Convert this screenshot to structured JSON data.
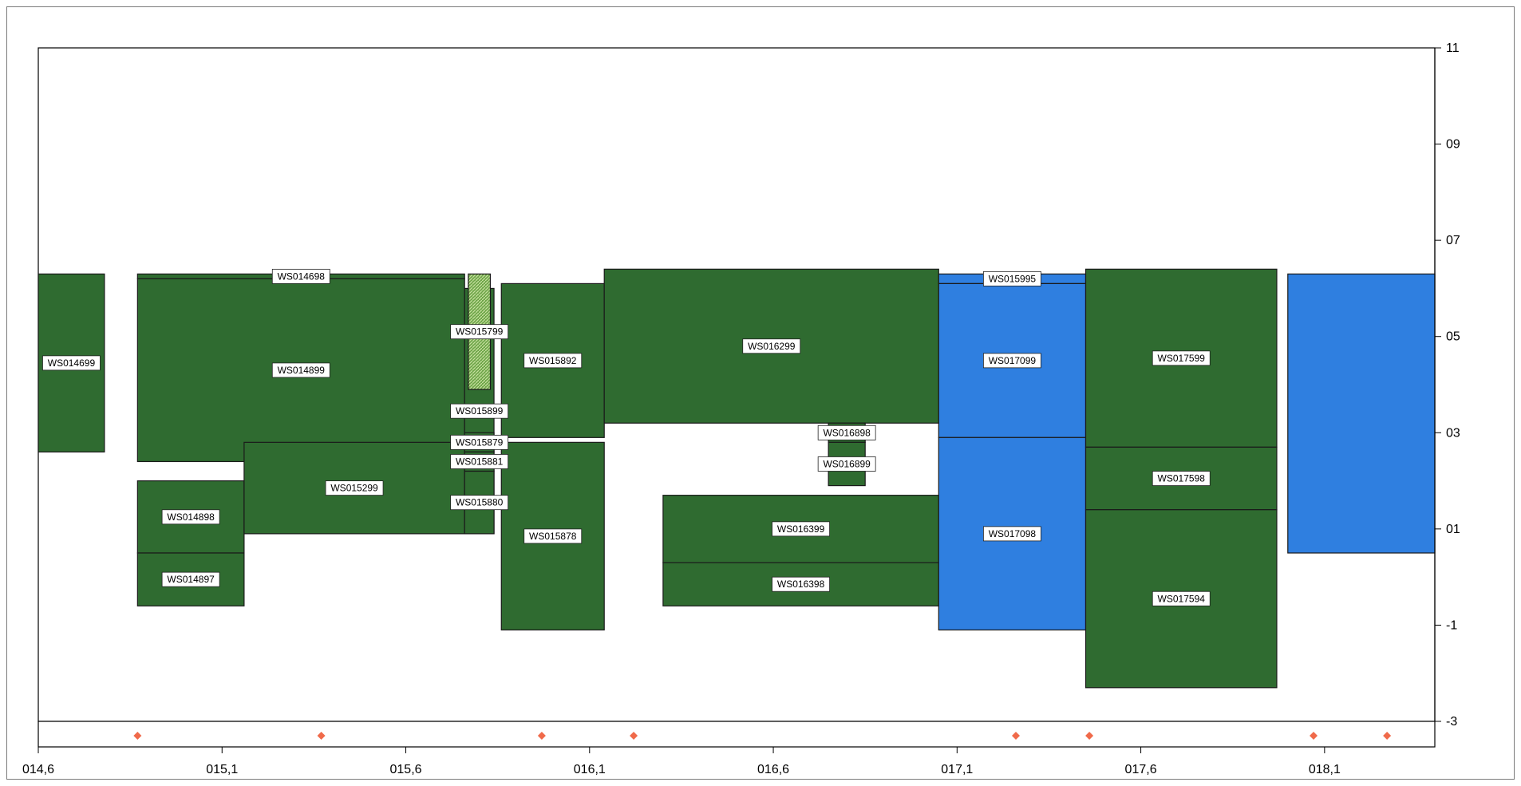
{
  "chart_data": {
    "type": "area",
    "title": "",
    "xlabel": "",
    "ylabel": "",
    "xlim": [
      14.6,
      18.4
    ],
    "ylim": [
      -3,
      11
    ],
    "x_ticks": [
      14.6,
      15.1,
      15.6,
      16.1,
      16.6,
      17.1,
      17.6,
      18.1
    ],
    "x_tick_labels": [
      "014,6",
      "015,1",
      "015,6",
      "016,1",
      "016,6",
      "017,1",
      "017,6",
      "018,1"
    ],
    "y_ticks": [
      11,
      9,
      7,
      5,
      3,
      1,
      -1,
      -3
    ],
    "y_tick_labels": [
      "11",
      "09",
      "07",
      "05",
      "03",
      "01",
      "-1",
      "-3"
    ],
    "y_axis_side": "right",
    "grid": false,
    "legend": "none",
    "colors": {
      "green": "#2f6b30",
      "blue": "#2f7fe0",
      "hatch": "#8fbf5f",
      "outline": "#1a1a1a",
      "marker": "#f06a4a"
    },
    "series": [
      {
        "name": "WS014699",
        "color": "green",
        "x0": 14.6,
        "x1": 14.78,
        "y_top": 6.3,
        "y_bottom": 2.6
      },
      {
        "name": "WS014698",
        "color": "green",
        "x0": 14.87,
        "x1": 15.76,
        "y_top": 6.3,
        "y_bottom": 6.2
      },
      {
        "name": "WS014899",
        "color": "green",
        "x0": 14.87,
        "x1": 15.76,
        "y_top": 6.2,
        "y_bottom": 2.4
      },
      {
        "name": "WS014898",
        "color": "green",
        "x0": 14.87,
        "x1": 15.16,
        "y_top": 2.0,
        "y_bottom": 0.5
      },
      {
        "name": "WS014897",
        "color": "green",
        "x0": 14.87,
        "x1": 15.16,
        "y_top": 0.5,
        "y_bottom": -0.6
      },
      {
        "name": "WS015299",
        "color": "green",
        "x0": 15.16,
        "x1": 15.76,
        "y_top": 2.8,
        "y_bottom": 0.9
      },
      {
        "name": "WS015799",
        "color": "hatch",
        "x0": 15.77,
        "x1": 15.83,
        "y_top": 6.3,
        "y_bottom": 3.9
      },
      {
        "name": "WS015899",
        "color": "green",
        "x0": 15.76,
        "x1": 15.84,
        "y_top": 6.0,
        "y_bottom": 0.9
      },
      {
        "name": "WS015879",
        "color": "green",
        "x0": 15.76,
        "x1": 15.84,
        "y_top": 3.0,
        "y_bottom": 2.6
      },
      {
        "name": "WS015881",
        "color": "green",
        "x0": 15.76,
        "x1": 15.84,
        "y_top": 2.6,
        "y_bottom": 2.2
      },
      {
        "name": "WS015880",
        "color": "green",
        "x0": 15.76,
        "x1": 15.84,
        "y_top": 2.2,
        "y_bottom": 0.9
      },
      {
        "name": "WS015892",
        "color": "green",
        "x0": 15.86,
        "x1": 16.14,
        "y_top": 6.1,
        "y_bottom": 2.9
      },
      {
        "name": "WS015878",
        "color": "green",
        "x0": 15.86,
        "x1": 16.14,
        "y_top": 2.8,
        "y_bottom": -1.1
      },
      {
        "name": "WS016299",
        "color": "green",
        "x0": 16.14,
        "x1": 17.05,
        "y_top": 6.4,
        "y_bottom": 3.2
      },
      {
        "name": "WS016898",
        "color": "green",
        "x0": 16.75,
        "x1": 16.85,
        "y_top": 3.2,
        "y_bottom": 2.8
      },
      {
        "name": "WS016899",
        "color": "green",
        "x0": 16.75,
        "x1": 16.85,
        "y_top": 2.8,
        "y_bottom": 1.9
      },
      {
        "name": "WS016399",
        "color": "green",
        "x0": 16.3,
        "x1": 17.05,
        "y_top": 1.7,
        "y_bottom": 0.3
      },
      {
        "name": "WS016398",
        "color": "green",
        "x0": 16.3,
        "x1": 17.05,
        "y_top": 0.3,
        "y_bottom": -0.6
      },
      {
        "name": "WS015995",
        "color": "blue",
        "x0": 17.05,
        "x1": 17.45,
        "y_top": 6.3,
        "y_bottom": 6.1
      },
      {
        "name": "WS017099",
        "color": "blue",
        "x0": 17.05,
        "x1": 17.45,
        "y_top": 6.1,
        "y_bottom": 2.9
      },
      {
        "name": "WS017098",
        "color": "blue",
        "x0": 17.05,
        "x1": 17.45,
        "y_top": 2.9,
        "y_bottom": -1.1
      },
      {
        "name": "WS017599",
        "color": "green",
        "x0": 17.45,
        "x1": 17.97,
        "y_top": 6.4,
        "y_bottom": 2.7
      },
      {
        "name": "WS017598",
        "color": "green",
        "x0": 17.45,
        "x1": 17.97,
        "y_top": 2.7,
        "y_bottom": 1.4
      },
      {
        "name": "WS017594",
        "color": "green",
        "x0": 17.45,
        "x1": 17.97,
        "y_top": 1.4,
        "y_bottom": -2.3
      },
      {
        "name": "",
        "color": "blue",
        "x0": 18.0,
        "x1": 18.4,
        "y_top": 6.3,
        "y_bottom": 0.5
      }
    ],
    "markers": [
      14.87,
      15.37,
      15.97,
      16.22,
      17.26,
      17.46,
      18.07,
      18.27
    ]
  }
}
